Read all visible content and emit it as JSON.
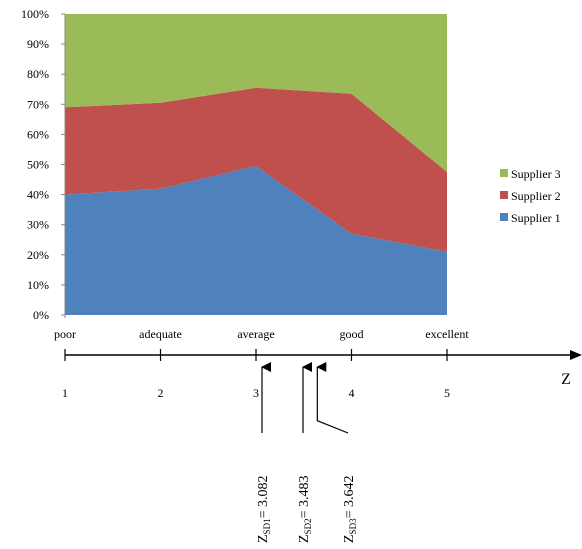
{
  "chart_data": {
    "type": "area",
    "stacked": "percent",
    "categories": [
      "poor",
      "adequate",
      "average",
      "good",
      "excellent"
    ],
    "series": [
      {
        "name": "Supplier 1",
        "color": "#4f81bd",
        "values": [
          40,
          42,
          49.5,
          27,
          21
        ]
      },
      {
        "name": "Supplier 2",
        "color": "#c0504d",
        "values": [
          29,
          28.5,
          26,
          46.5,
          26.5
        ]
      },
      {
        "name": "Supplier 3",
        "color": "#9bbb59",
        "values": [
          31,
          29.5,
          24.5,
          26.5,
          52.5
        ]
      }
    ],
    "y_ticks": [
      "0%",
      "10%",
      "20%",
      "30%",
      "40%",
      "50%",
      "60%",
      "70%",
      "80%",
      "90%",
      "100%"
    ],
    "ylim": [
      0,
      100
    ],
    "legend": {
      "placement": "right",
      "order": [
        "Supplier 3",
        "Supplier 2",
        "Supplier 1"
      ]
    },
    "z_axis": {
      "label": "Z",
      "ticks": [
        1,
        2,
        3,
        4,
        5
      ],
      "tick_labels": [
        "1",
        "2",
        "3",
        "4",
        "5"
      ]
    },
    "annotations": [
      {
        "main": "Z",
        "sub": "SD1",
        "value_text": "= 3.082",
        "z": 3.082
      },
      {
        "main": "Z",
        "sub": "SD2",
        "value_text": "= 3.483",
        "z": 3.483
      },
      {
        "main": "Z",
        "sub": "SD3",
        "value_text": "= 3.642",
        "z": 3.642
      }
    ]
  }
}
